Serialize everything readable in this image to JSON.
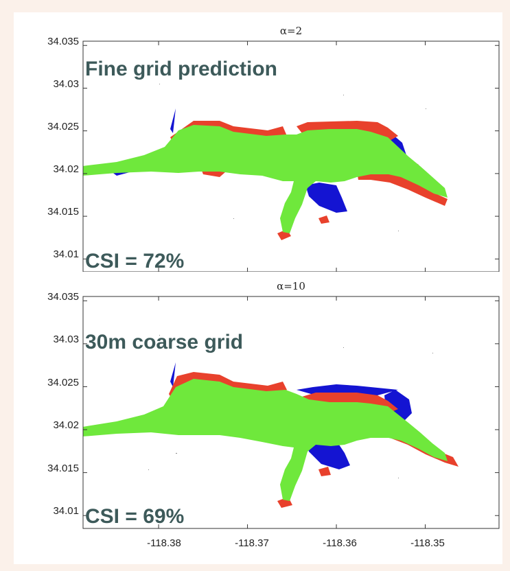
{
  "chart_data": [
    {
      "type": "map",
      "title": "α=2",
      "annotation_top": "Fine grid prediction",
      "annotation_bottom": "CSI = 72%",
      "y_ticks": [
        "34.035",
        "34.03",
        "34.025",
        "34.02",
        "34.015",
        "34.01"
      ],
      "y_tick_values": [
        34.035,
        34.03,
        34.025,
        34.02,
        34.015,
        34.01
      ],
      "x_tick_values": [
        -118.38,
        -118.37,
        -118.36,
        -118.35
      ],
      "xlim": [
        -118.3885,
        -118.3417
      ],
      "ylim": [
        34.0085,
        34.0355
      ],
      "legend": "none",
      "colors": {
        "agree": "#6fe83c",
        "overpredicted": "#e8412c",
        "underpredicted": "#1414d2"
      },
      "grid": false
    },
    {
      "type": "map",
      "title": "α=10",
      "annotation_top": "30m coarse grid",
      "annotation_bottom": "CSI = 69%",
      "y_ticks": [
        "34.035",
        "34.03",
        "34.025",
        "34.02",
        "34.015",
        "34.01"
      ],
      "y_tick_values": [
        34.035,
        34.03,
        34.025,
        34.02,
        34.015,
        34.01
      ],
      "x_ticks": [
        "-118.38",
        "-118.37",
        "-118.36",
        "-118.35"
      ],
      "x_tick_values": [
        -118.38,
        -118.37,
        -118.36,
        -118.35
      ],
      "xlim": [
        -118.3885,
        -118.3417
      ],
      "ylim": [
        34.0085,
        34.0355
      ],
      "legend": "none",
      "colors": {
        "agree": "#6fe83c",
        "overpredicted": "#e8412c",
        "underpredicted": "#1414d2"
      },
      "grid": false
    }
  ]
}
